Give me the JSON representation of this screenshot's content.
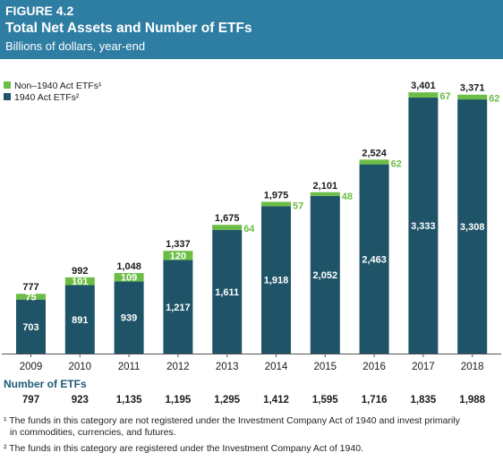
{
  "figure": {
    "label": "FIGURE 4.2",
    "title": "Total Net Assets and Number of ETFs",
    "subtitle": "Billions of dollars, year-end"
  },
  "colors": {
    "header_bg": "#2e7ea3",
    "non1940": "#6cbd45",
    "act1940": "#1f5468",
    "count_head": "#1f5b78"
  },
  "chart_data": {
    "type": "bar",
    "stacked": true,
    "categories": [
      "2009",
      "2010",
      "2011",
      "2012",
      "2013",
      "2014",
      "2015",
      "2016",
      "2017",
      "2018"
    ],
    "series": [
      {
        "name": "1940 Act ETFs²",
        "values": [
          703,
          891,
          939,
          1217,
          1611,
          1918,
          2052,
          2463,
          3333,
          3308
        ],
        "labels": [
          "703",
          "891",
          "939",
          "1,217",
          "1,611",
          "1,918",
          "2,052",
          "2,463",
          "3,333",
          "3,308"
        ]
      },
      {
        "name": "Non–1940 Act ETFs¹",
        "values": [
          75,
          101,
          109,
          120,
          64,
          57,
          48,
          62,
          67,
          62
        ],
        "labels": [
          "75",
          "101",
          "109",
          "120",
          "64",
          "57",
          "48",
          "62",
          "67",
          "62"
        ]
      }
    ],
    "totals": [
      "777",
      "992",
      "1,048",
      "1,337",
      "1,675",
      "1,975",
      "2,101",
      "2,524",
      "3,401",
      "3,371"
    ],
    "ylim": [
      0,
      3600
    ],
    "legend_position": "top-left",
    "grid": false
  },
  "etf_counts": {
    "heading": "Number of ETFs",
    "values": [
      "797",
      "923",
      "1,135",
      "1,195",
      "1,295",
      "1,412",
      "1,595",
      "1,716",
      "1,835",
      "1,988"
    ]
  },
  "footnotes": [
    "¹ The funds in this category are not registered under the Investment Company Act of 1940 and invest primarily",
    "in commodities, currencies, and futures.",
    "² The funds in this category are registered under the Investment Company Act of 1940."
  ]
}
